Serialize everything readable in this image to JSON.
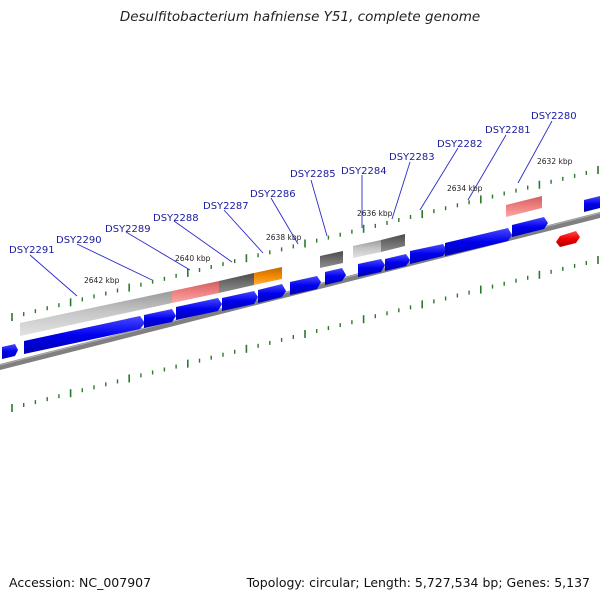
{
  "title": "Desulfitobacterium hafniense Y51, complete genome",
  "footer": {
    "accession": "Accession: NC_007907",
    "summary": "Topology: circular; Length: 5,727,534 bp; Genes: 5,137"
  },
  "kbp_labels": [
    "2642 kbp",
    "2640 kbp",
    "2638 kbp",
    "2636 kbp",
    "2634 kbp",
    "2632 kbp"
  ],
  "gene_labels": [
    "DSY2291",
    "DSY2290",
    "DSY2289",
    "DSY2288",
    "DSY2287",
    "DSY2286",
    "DSY2285",
    "DSY2284",
    "DSY2283",
    "DSY2282",
    "DSY2281",
    "DSY2280"
  ],
  "colors": {
    "cds": "#0000ee",
    "cds_highlight": "#ee0000",
    "backbone": "#808080",
    "tick": "#2a7a2a",
    "label": "#1a1aa0",
    "feature_light_gray": "#bdbdbd",
    "feature_dark_gray": "#6a6a6a",
    "feature_pink": "#ee8080",
    "feature_orange": "#f08800"
  }
}
